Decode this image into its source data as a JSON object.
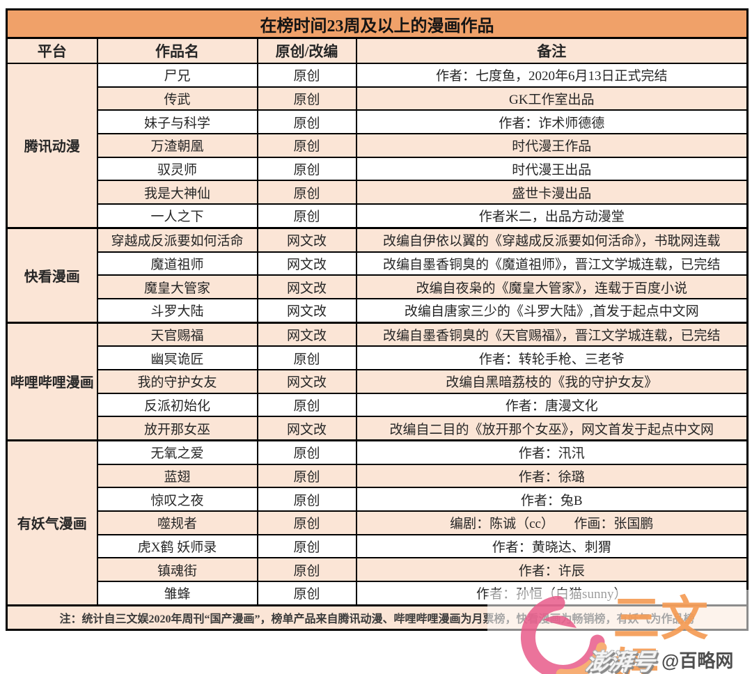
{
  "table": {
    "title": "在榜时间23周及以上的漫画作品",
    "columns": [
      "平台",
      "作品名",
      "原创/改编",
      "备注"
    ],
    "groups": [
      {
        "platform": "腾讯动漫",
        "rows": [
          {
            "work": "尸兄",
            "type": "原创",
            "note": "作者：七度鱼，2020年6月13日正式完结"
          },
          {
            "work": "传武",
            "type": "原创",
            "note": "GK工作室出品"
          },
          {
            "work": "妹子与科学",
            "type": "原创",
            "note": "作者：诈术师德德"
          },
          {
            "work": "万渣朝凰",
            "type": "原创",
            "note": "时代漫王作品"
          },
          {
            "work": "驭灵师",
            "type": "原创",
            "note": "时代漫王出品"
          },
          {
            "work": "我是大神仙",
            "type": "原创",
            "note": "盛世卡漫出品"
          },
          {
            "work": "一人之下",
            "type": "原创",
            "note": "作者米二，出品方动漫堂"
          }
        ]
      },
      {
        "platform": "快看漫画",
        "rows": [
          {
            "work": "穿越成反派要如何活命",
            "type": "网文改",
            "note": "改编自伊依以翼的《穿越成反派要如何活命》，书耽网连载"
          },
          {
            "work": "魔道祖师",
            "type": "网文改",
            "note": "改编自墨香铜臭的《魔道祖师》，晋江文学城连载，已完结"
          },
          {
            "work": "魔皇大管家",
            "type": "网文改",
            "note": "改编自夜枭的《魔皇大管家》，连载于百度小说"
          },
          {
            "work": "斗罗大陆",
            "type": "网文改",
            "note": "改编自唐家三少的《斗罗大陆》,首发于起点中文网"
          }
        ]
      },
      {
        "platform": "哔哩哔哩漫画",
        "rows": [
          {
            "work": "天官赐福",
            "type": "网文改",
            "note": "改编自墨香铜臭的《天官赐福》，晋江文学城连载，已完结"
          },
          {
            "work": "幽冥诡匠",
            "type": "原创",
            "note": "作者：转轮手枪、三老爷"
          },
          {
            "work": "我的守护女友",
            "type": "网文改",
            "note": "改编自黑暗荔枝的《我的守护女友》"
          },
          {
            "work": "反派初始化",
            "type": "原创",
            "note": "作者：唐漫文化"
          },
          {
            "work": "放开那女巫",
            "type": "网文改",
            "note": "改编自二目的《放开那个女巫》，网文首发于起点中文网"
          }
        ]
      },
      {
        "platform": "有妖气漫画",
        "rows": [
          {
            "work": "无氧之爱",
            "type": "原创",
            "note": "作者：汛汛"
          },
          {
            "work": "蓝翅",
            "type": "原创",
            "note": "作者：徐璐"
          },
          {
            "work": "惊叹之夜",
            "type": "原创",
            "note": "作者：兔B"
          },
          {
            "work": "噬规者",
            "type": "原创",
            "note": "编剧：陈诚（cc）　　作画：张国鹏"
          },
          {
            "work": "虎X鹤 妖师录",
            "type": "原创",
            "note": "作者：黄晓达、刺猬"
          },
          {
            "work": "镇魂街",
            "type": "原创",
            "note": "作者：许辰"
          },
          {
            "work": "雏蜂",
            "type": "原创",
            "note": "作者：孙恒（白猫sunny）"
          }
        ]
      }
    ]
  },
  "footer": {
    "note": "注：统计自三文娱2020年周刊“国产漫画”，榜单产品来自腾讯动漫、哔哩哔哩漫画为月票榜，快看漫画为畅销榜，有妖气为作品榜"
  },
  "watermarks": {
    "logo_text": "三文娱",
    "pengpai": "澎湃号",
    "bailue": "@百略网"
  },
  "colors": {
    "title_bg": "#f0a169",
    "stripe": "#fbe5d6",
    "border": "#000000",
    "logo_orange": "#f59c55",
    "logo_pink": "#e85b8a"
  }
}
